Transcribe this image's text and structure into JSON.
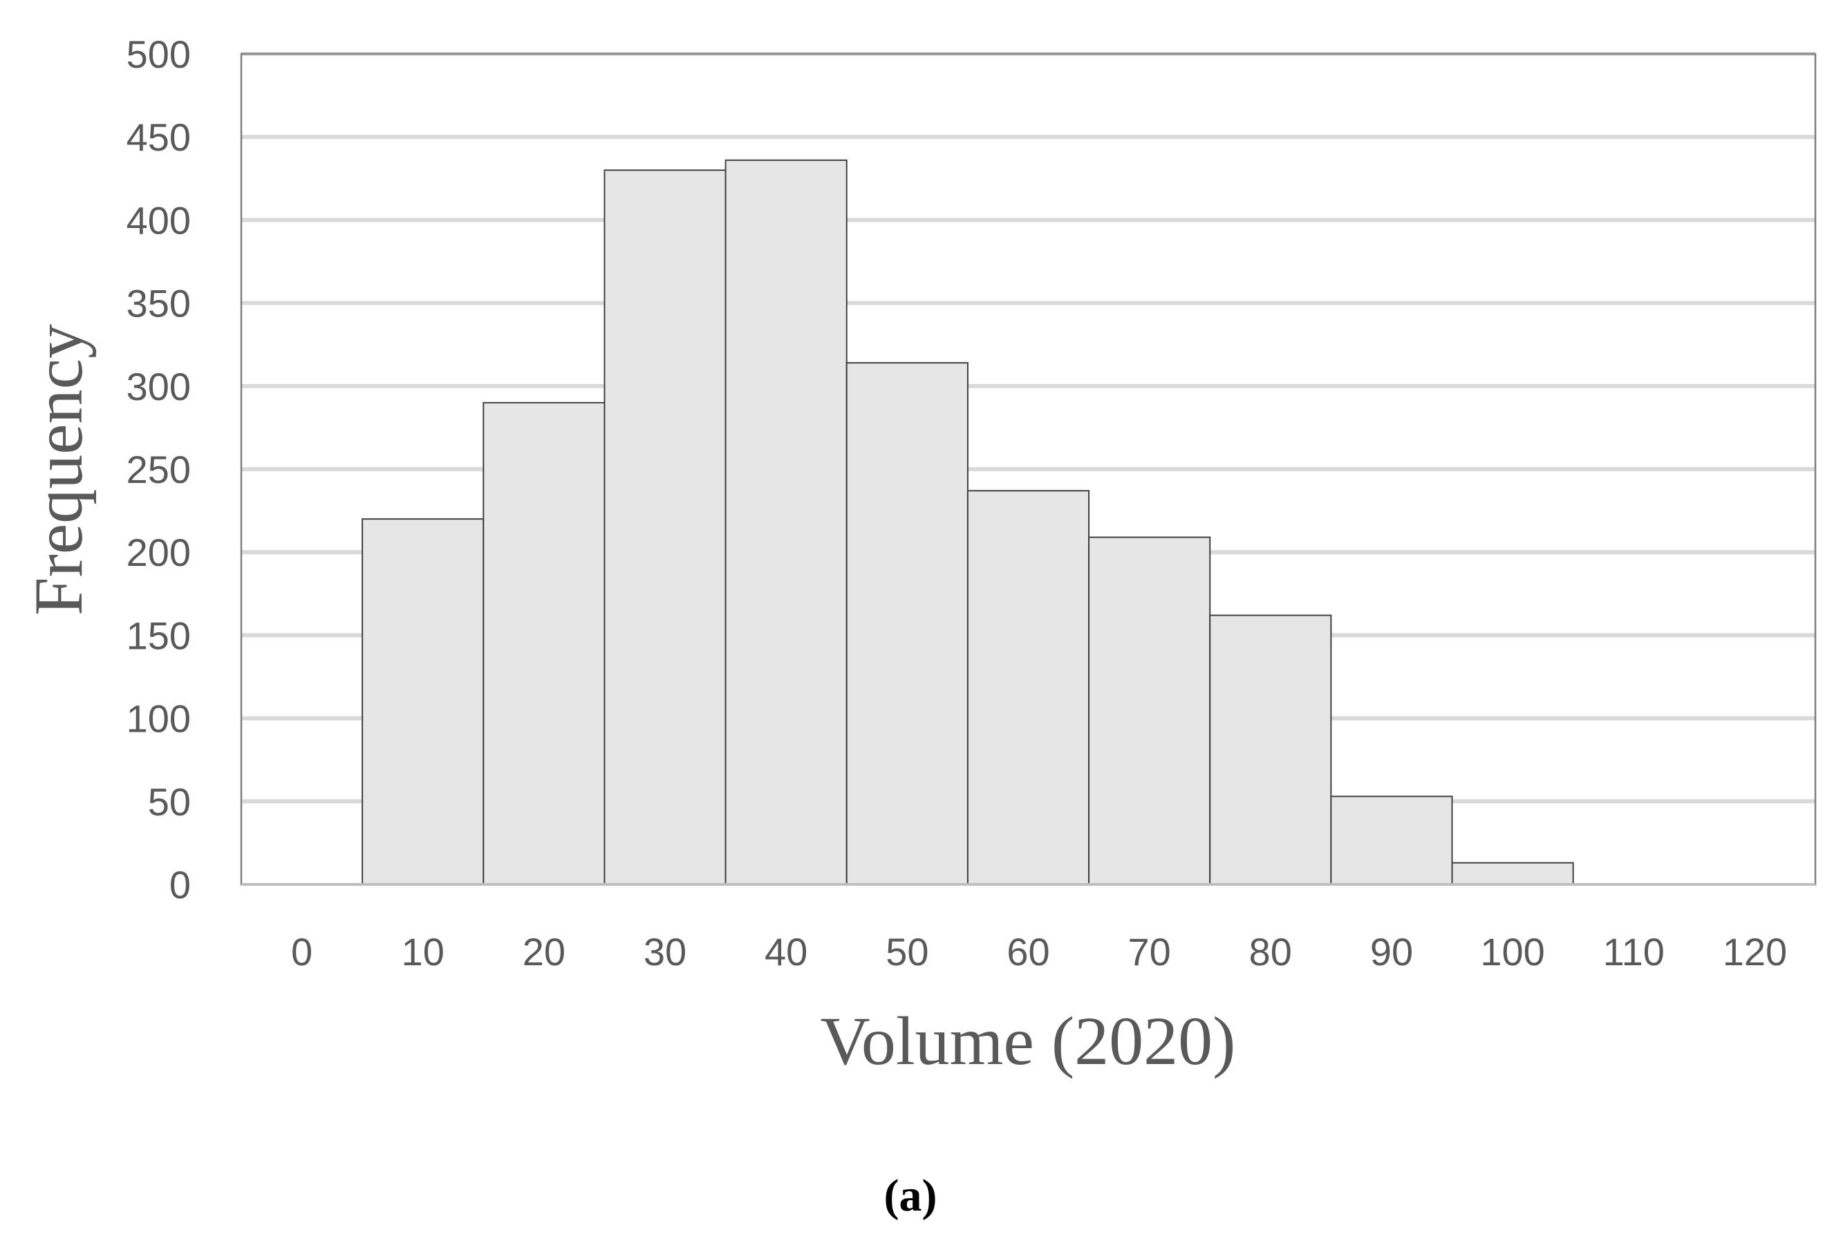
{
  "chart_data": {
    "type": "bar",
    "xlabel": "Volume (2020)",
    "ylabel": "Frequency",
    "caption": "(a)",
    "categories": [
      "0",
      "10",
      "20",
      "30",
      "40",
      "50",
      "60",
      "70",
      "80",
      "90",
      "100",
      "110",
      "120"
    ],
    "values": [
      0,
      220,
      290,
      430,
      436,
      314,
      237,
      209,
      162,
      53,
      13,
      0,
      0
    ],
    "ylim": [
      0,
      500
    ],
    "yticks": [
      "0",
      "50",
      "100",
      "150",
      "200",
      "250",
      "300",
      "350",
      "400",
      "450",
      "500"
    ],
    "grid": true,
    "legend": "none",
    "colors": {
      "bar_fill": "#e6e6e6",
      "bar_edge": "#404040",
      "gridline": "#d9d9d9",
      "text": "#595959"
    }
  }
}
